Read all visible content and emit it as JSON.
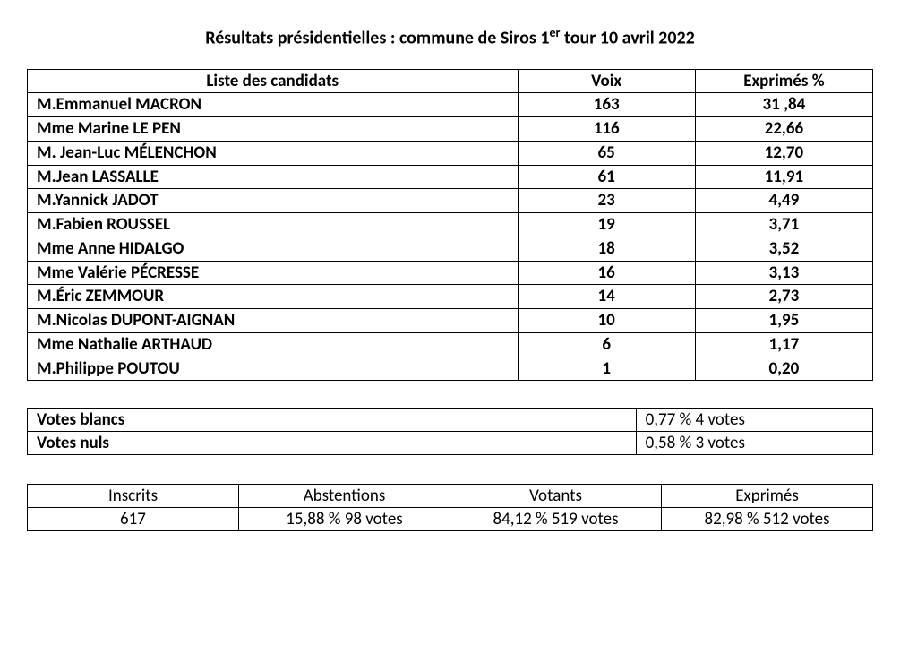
{
  "title_html": "Résultats présidentielles : commune de Siros 1<sup>er</sup> tour 10 avril 2022",
  "colors": {
    "text": "#000000",
    "background": "#ffffff",
    "border": "#000000"
  },
  "typography": {
    "title_fontsize_pt": 15,
    "body_fontsize_pt": 14,
    "font_family": "Calibri"
  },
  "results_table": {
    "type": "table",
    "columns": [
      "Liste des candidats",
      "Voix",
      "Exprimés %"
    ],
    "column_widths_pct": [
      58,
      21,
      21
    ],
    "column_align": [
      "left",
      "center",
      "center"
    ],
    "header_weight": "bold",
    "body_weight": "bold",
    "rows": [
      {
        "name": "M.Emmanuel MACRON",
        "voix": "163",
        "pct": "31 ,84"
      },
      {
        "name": "Mme Marine LE PEN",
        "voix": "116",
        "pct": "22,66"
      },
      {
        "name": "M. Jean-Luc MÉLENCHON",
        "voix": "65",
        "pct": "12,70"
      },
      {
        "name": "M.Jean LASSALLE",
        "voix": "61",
        "pct": "11,91"
      },
      {
        "name": "M.Yannick JADOT",
        "voix": "23",
        "pct": "4,49"
      },
      {
        "name": "M.Fabien ROUSSEL",
        "voix": "19",
        "pct": "3,71"
      },
      {
        "name": "Mme Anne HIDALGO",
        "voix": "18",
        "pct": "3,52"
      },
      {
        "name": "Mme Valérie PÉCRESSE",
        "voix": "16",
        "pct": "3,13"
      },
      {
        "name": "M.Éric ZEMMOUR",
        "voix": "14",
        "pct": "2,73"
      },
      {
        "name": "M.Nicolas DUPONT-AIGNAN",
        "voix": "10",
        "pct": "1,95"
      },
      {
        "name": "Mme Nathalie ARTHAUD",
        "voix": "6",
        "pct": "1,17"
      },
      {
        "name": "M.Philippe POUTOU",
        "voix": "1",
        "pct": "0,20"
      }
    ]
  },
  "votes_table": {
    "type": "table",
    "column_widths_pct": [
      72,
      28
    ],
    "rows": [
      {
        "label": "Votes blancs",
        "value": "0,77 %   4 votes"
      },
      {
        "label": "Votes nuls",
        "value": "0,58 %   3 votes"
      }
    ]
  },
  "summary_table": {
    "type": "table",
    "column_widths_pct": [
      25,
      25,
      25,
      25
    ],
    "headers": [
      "Inscrits",
      "Abstentions",
      "Votants",
      "Exprimés"
    ],
    "values": [
      "617",
      "15,88 %   98 votes",
      "84,12 %   519 votes",
      "82,98 %   512 votes"
    ]
  }
}
